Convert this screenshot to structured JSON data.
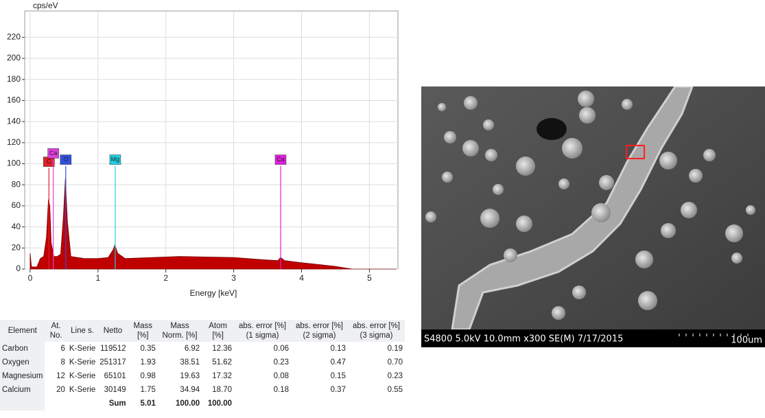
{
  "chart_data": {
    "type": "area",
    "y_label": "cps/eV",
    "x_label": "Energy [keV]",
    "xlim": [
      -0.08,
      5.42
    ],
    "ylim": [
      0,
      245
    ],
    "xticks": [
      0,
      1,
      2,
      3,
      4,
      5
    ],
    "yticks": [
      0,
      20,
      40,
      60,
      80,
      100,
      120,
      140,
      160,
      180,
      200,
      220
    ],
    "grid": true,
    "color": "#c00000",
    "x": [
      0.0,
      0.02,
      0.1,
      0.15,
      0.2,
      0.24,
      0.27,
      0.29,
      0.31,
      0.35,
      0.4,
      0.45,
      0.49,
      0.52,
      0.55,
      0.6,
      0.8,
      1.0,
      1.15,
      1.22,
      1.25,
      1.29,
      1.4,
      1.8,
      2.2,
      2.6,
      3.0,
      3.4,
      3.65,
      3.69,
      3.75,
      4.0,
      4.3,
      4.5,
      4.65,
      4.75,
      5.4
    ],
    "values": [
      15,
      2,
      2,
      10,
      12,
      30,
      66,
      60,
      25,
      12,
      12,
      14,
      50,
      86,
      45,
      12,
      10,
      10,
      11,
      18,
      23,
      15,
      10,
      11,
      12,
      11.5,
      11,
      9,
      8,
      11,
      8,
      6,
      4,
      2.5,
      1,
      0,
      0
    ],
    "markers": [
      {
        "name": "C",
        "x": 0.277,
        "y": 96,
        "color": "#e0202a"
      },
      {
        "name": "Ca",
        "x": 0.341,
        "y": 104,
        "color": "#e040e0"
      },
      {
        "name": "O",
        "x": 0.525,
        "y": 98,
        "color": "#3050e0"
      },
      {
        "name": "Mg",
        "x": 1.254,
        "y": 98,
        "color": "#20d0e0"
      },
      {
        "name": "Ca",
        "x": 3.691,
        "y": 98,
        "color": "#e020e0"
      }
    ]
  },
  "table": {
    "header": [
      "Element",
      "At. No.",
      "Line s.",
      "Netto",
      "Mass [%]",
      "Mass Norm. [%]",
      "Atom [%]",
      "abs. error [%] (1 sigma)",
      "abs. error [%] (2 sigma)",
      "abs. error [%] (3 sigma)"
    ],
    "rows": [
      [
        "Carbon",
        "6",
        "K-Serie",
        "119512",
        "0.35",
        "6.92",
        "12.36",
        "0.06",
        "0.13",
        "0.19"
      ],
      [
        "Oxygen",
        "8",
        "K-Serie",
        "251317",
        "1.93",
        "38.51",
        "51.62",
        "0.23",
        "0.47",
        "0.70"
      ],
      [
        "Magnesium",
        "12",
        "K-Serie",
        "65101",
        "0.98",
        "19.63",
        "17.32",
        "0.08",
        "0.15",
        "0.23"
      ],
      [
        "Calcium",
        "20",
        "K-Serie",
        "30149",
        "1.75",
        "34.94",
        "18.70",
        "0.18",
        "0.37",
        "0.55"
      ]
    ],
    "sum": {
      "label": "Sum",
      "mass": "5.01",
      "mass_norm": "100.00",
      "atom": "100.00"
    }
  },
  "image": {
    "caption": "S4800 5.0kV 10.0mm x300 SE(M) 7/17/2015",
    "scale": "100um"
  }
}
